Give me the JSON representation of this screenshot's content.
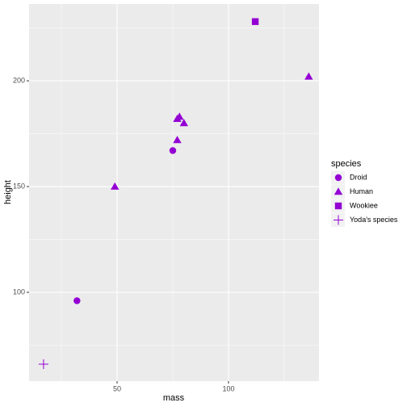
{
  "chart_data": {
    "type": "scatter",
    "x_label": "mass",
    "y_label": "height",
    "legend_title": "species",
    "legend_position": "right",
    "series": [
      {
        "name": "Droid",
        "color": "#9400d3",
        "shape": "circle",
        "x": [
          32,
          75
        ],
        "values": [
          96,
          167
        ]
      },
      {
        "name": "Human",
        "color": "#9400d3",
        "shape": "triangle",
        "x": [
          49,
          77,
          77,
          78,
          80,
          136
        ],
        "values": [
          150,
          172,
          182,
          183,
          180,
          202
        ]
      },
      {
        "name": "Wookiee",
        "color": "#9400d3",
        "shape": "square",
        "x": [
          112
        ],
        "values": [
          228
        ]
      },
      {
        "name": "Yoda's species",
        "color": "#9400d3",
        "shape": "plus",
        "x": [
          17
        ],
        "values": [
          66
        ]
      }
    ],
    "xlim": [
      10.5,
      140.6
    ],
    "ylim": [
      58,
      236.3
    ],
    "xticks": [
      50,
      100
    ],
    "yticks": [
      100,
      150,
      200
    ],
    "xminor": [
      25,
      75,
      125
    ],
    "yminor": [
      75,
      125,
      175,
      225
    ],
    "grid": true
  }
}
